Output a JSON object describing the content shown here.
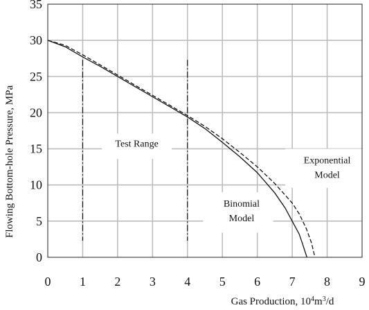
{
  "chart_data": {
    "type": "line",
    "xlabel": "Gas Production, 10",
    "xlabel_sup": "4",
    "xlabel_mid": "m",
    "xlabel_sup2": "3",
    "xlabel_end": "/d",
    "ylabel": "Flowing Bottom-hole Pressure, MPa",
    "xlim": [
      0,
      9
    ],
    "ylim": [
      0,
      35
    ],
    "x_ticks": [
      "0",
      "1",
      "2",
      "3",
      "4",
      "5",
      "6",
      "7",
      "8",
      "9"
    ],
    "y_ticks": [
      "0",
      "5",
      "10",
      "15",
      "20",
      "25",
      "30",
      "35"
    ],
    "grid": true,
    "series": [
      {
        "style": "solid",
        "x": [
          0,
          0.5,
          1,
          1.5,
          2,
          2.5,
          3,
          3.5,
          4,
          4.5,
          5,
          5.5,
          6,
          6.5,
          6.8,
          7.0,
          7.2,
          7.3,
          7.42
        ],
        "y": [
          30,
          29.1,
          27.7,
          26.4,
          25.0,
          23.6,
          22.2,
          20.8,
          19.4,
          17.8,
          15.9,
          13.9,
          11.7,
          8.9,
          6.8,
          5.0,
          3.2,
          1.8,
          0
        ]
      },
      {
        "style": "dashed",
        "x": [
          0,
          0.5,
          1,
          1.5,
          2,
          2.5,
          3,
          3.5,
          4,
          4.5,
          5,
          5.5,
          6,
          6.5,
          7.0,
          7.2,
          7.4,
          7.55,
          7.65
        ],
        "y": [
          30,
          29.3,
          28.0,
          26.6,
          25.2,
          23.8,
          22.4,
          21.0,
          19.6,
          18.1,
          16.4,
          14.5,
          12.5,
          10.2,
          7.5,
          6.0,
          4.0,
          2.0,
          0
        ]
      }
    ],
    "test_range_lines": [
      1,
      4
    ],
    "annotations": [
      {
        "text": "Test Range",
        "x": 2.55,
        "y": 15.3
      },
      {
        "text": "Exponential",
        "x": 8.0,
        "y": 13.0
      },
      {
        "text": "Model",
        "x": 8.0,
        "y": 11.0
      },
      {
        "text": "Binomial",
        "x": 5.55,
        "y": 7.0
      },
      {
        "text": "Model",
        "x": 5.55,
        "y": 5.0
      }
    ]
  }
}
